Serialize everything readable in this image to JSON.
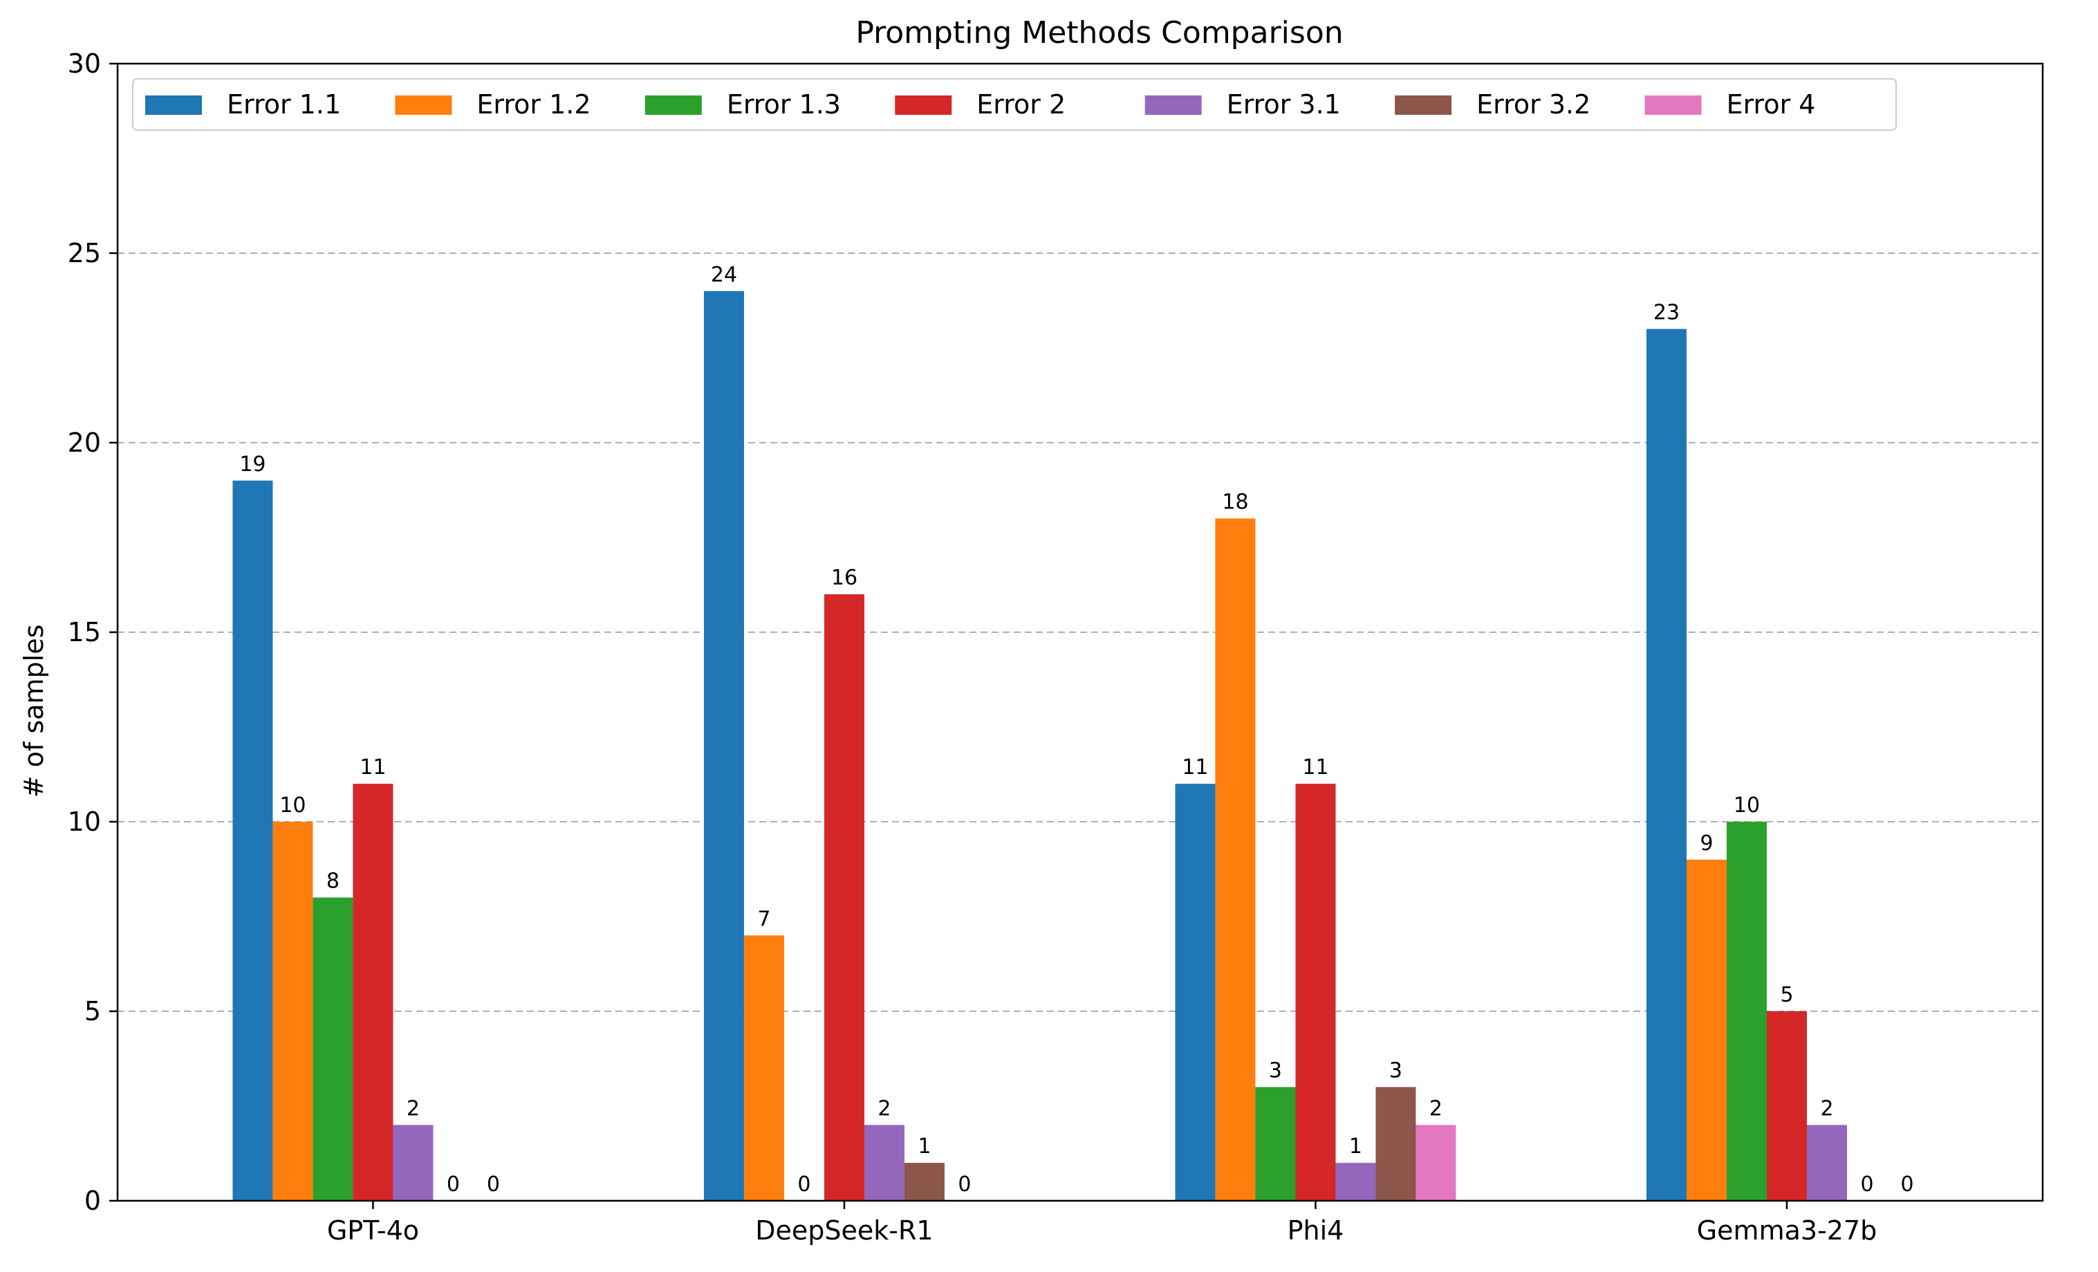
{
  "chart_data": {
    "type": "bar",
    "title": "Prompting Methods Comparison",
    "xlabel": "",
    "ylabel": "# of samples",
    "ylim": [
      0,
      30
    ],
    "yticks": [
      0,
      5,
      10,
      15,
      20,
      25,
      30
    ],
    "grid": "y-dashed",
    "legend": "top-left",
    "categories": [
      "GPT-4o",
      "DeepSeek-R1",
      "Phi4",
      "Gemma3-27b"
    ],
    "series": [
      {
        "name": "Error 1.1",
        "color": "#1f77b4",
        "values": [
          19,
          24,
          11,
          23
        ]
      },
      {
        "name": "Error 1.2",
        "color": "#ff7f0e",
        "values": [
          10,
          7,
          18,
          9
        ]
      },
      {
        "name": "Error 1.3",
        "color": "#2ca02c",
        "values": [
          8,
          0,
          3,
          10
        ]
      },
      {
        "name": "Error 2",
        "color": "#d62728",
        "values": [
          11,
          16,
          11,
          5
        ]
      },
      {
        "name": "Error 3.1",
        "color": "#9467bd",
        "values": [
          2,
          2,
          1,
          2
        ]
      },
      {
        "name": "Error 3.2",
        "color": "#8c564b",
        "values": [
          0,
          1,
          3,
          0
        ]
      },
      {
        "name": "Error 4",
        "color": "#e377c2",
        "values": [
          0,
          0,
          2,
          0
        ]
      }
    ],
    "data_labels": [
      [
        "19",
        "10",
        "8",
        "11",
        "2",
        "0",
        "0"
      ],
      [
        "24",
        "7",
        "0",
        "16",
        "2",
        "1",
        "0"
      ],
      [
        "11",
        "18",
        "3",
        "11",
        "1",
        "3",
        "2"
      ],
      [
        "23",
        "9",
        "10",
        "5",
        "2",
        "0",
        "0"
      ]
    ]
  }
}
